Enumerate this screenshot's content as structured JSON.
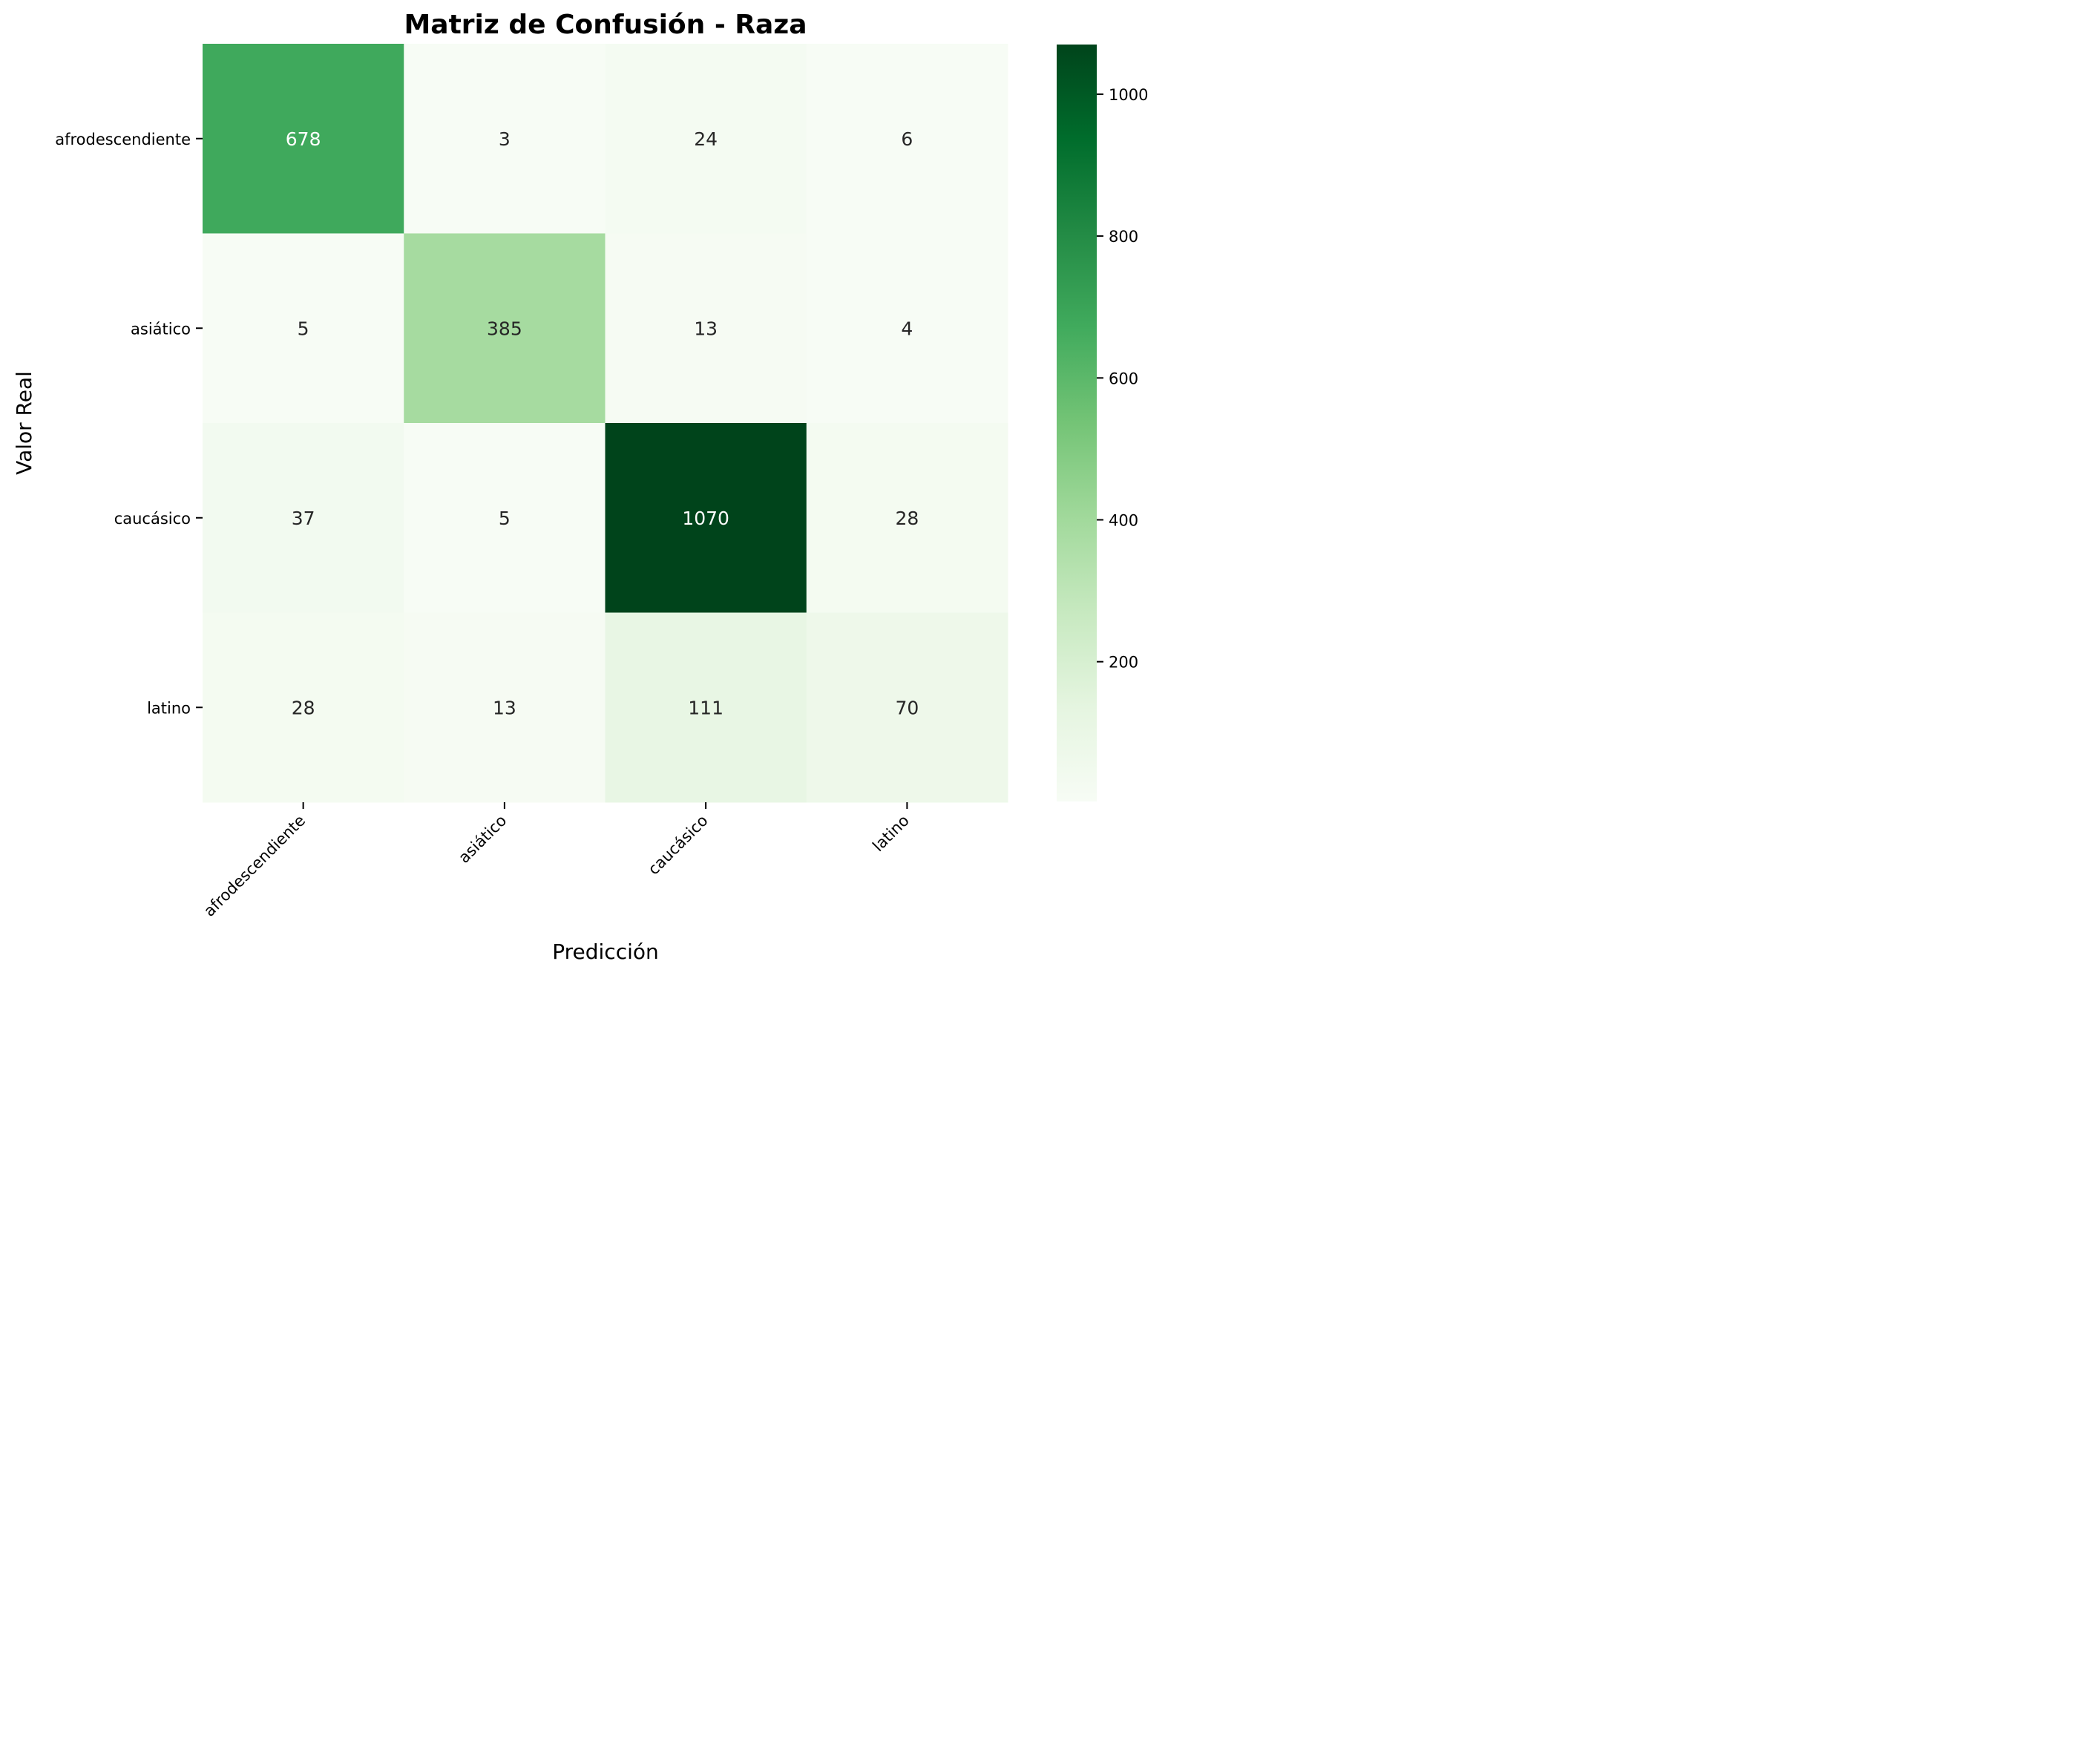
{
  "chart_data": {
    "type": "heatmap",
    "title": "Matriz de Confusión - Raza",
    "xlabel": "Predicción",
    "ylabel": "Valor Real",
    "x_categories": [
      "afrodescendiente",
      "asiático",
      "caucásico",
      "latino"
    ],
    "y_categories": [
      "afrodescendiente",
      "asiático",
      "caucásico",
      "latino"
    ],
    "values": [
      [
        678,
        3,
        24,
        6
      ],
      [
        5,
        385,
        13,
        4
      ],
      [
        37,
        5,
        1070,
        28
      ],
      [
        28,
        13,
        111,
        70
      ]
    ],
    "colormap": "Greens",
    "colorbar": {
      "range": [
        3,
        1070
      ],
      "ticks": [
        200,
        400,
        600,
        800,
        1000
      ]
    }
  }
}
